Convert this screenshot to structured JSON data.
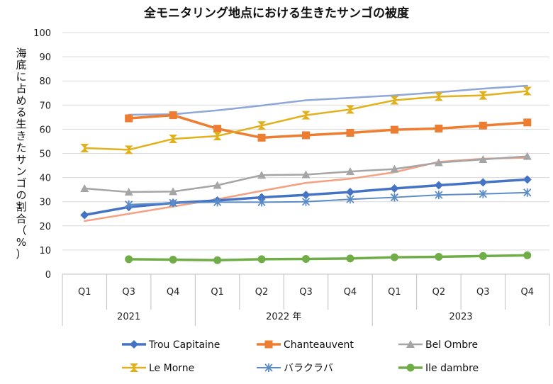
{
  "chart_data": {
    "type": "line",
    "title": "全モニタリング地点における生きたサンゴの被度",
    "ylabel": "海底に占める生きたサンゴの割合（%）",
    "xlabel": "",
    "ylim": [
      0,
      100
    ],
    "yticks": [
      0,
      10,
      20,
      30,
      40,
      50,
      60,
      70,
      80,
      90,
      100
    ],
    "categories": [
      "Q1",
      "Q3",
      "Q4",
      "Q1",
      "Q2",
      "Q3",
      "Q4",
      "Q1",
      "Q2",
      "Q3",
      "Q4"
    ],
    "year_groups": [
      {
        "label": "2021",
        "span": 3
      },
      {
        "label": "2022 年",
        "span": 4
      },
      {
        "label": "2023",
        "span": 4
      }
    ],
    "grid": true,
    "legend_position": "bottom",
    "series": [
      {
        "name": "Trou Capitaine",
        "color": "#4472C4",
        "marker": "diamond",
        "width": 3.5,
        "values": [
          24.5,
          27.8,
          29.5,
          30.5,
          31.8,
          32.8,
          34.0,
          35.5,
          36.8,
          38.0,
          39.2
        ]
      },
      {
        "name": "Chanteauvent",
        "color": "#ED7D31",
        "marker": "square",
        "width": 3.5,
        "values": [
          null,
          64.5,
          65.8,
          60.2,
          56.5,
          57.5,
          58.5,
          59.8,
          60.3,
          61.5,
          62.8
        ]
      },
      {
        "name": "Bel Ombre",
        "color": "#A5A5A5",
        "marker": "triangle",
        "width": 2.5,
        "values": [
          35.5,
          34.0,
          34.2,
          36.8,
          41.0,
          41.2,
          42.5,
          43.5,
          46.2,
          47.5,
          48.8
        ]
      },
      {
        "name": "Le Morne",
        "color": "#E2B01A",
        "marker": "hourglass",
        "width": 2.5,
        "values": [
          52.2,
          51.5,
          56.0,
          57.2,
          61.5,
          65.8,
          68.2,
          72.0,
          73.5,
          74.0,
          75.8
        ]
      },
      {
        "name": "バラクラバ",
        "color": "#5B8CC8",
        "marker": "star",
        "width": 2,
        "values": [
          null,
          28.8,
          29.5,
          29.8,
          29.8,
          30.0,
          31.0,
          31.8,
          32.8,
          33.2,
          33.8
        ]
      },
      {
        "name": "Ile dambre",
        "color": "#70AD47",
        "marker": "circle",
        "width": 3.5,
        "values": [
          null,
          6.2,
          6.0,
          5.8,
          6.2,
          6.3,
          6.5,
          7.0,
          7.2,
          7.5,
          7.8
        ]
      },
      {
        "name": "",
        "color": "#8FA6D8",
        "marker": "none",
        "width": 2.5,
        "values": [
          null,
          66.0,
          66.2,
          67.8,
          69.8,
          72.0,
          73.0,
          74.0,
          75.3,
          76.8,
          78.0
        ]
      },
      {
        "name": "",
        "color": "#F4A081",
        "marker": "none",
        "width": 2.5,
        "values": [
          22.0,
          25.0,
          28.0,
          31.0,
          34.5,
          37.8,
          39.5,
          42.2,
          46.5,
          47.8,
          48.2
        ]
      }
    ]
  }
}
